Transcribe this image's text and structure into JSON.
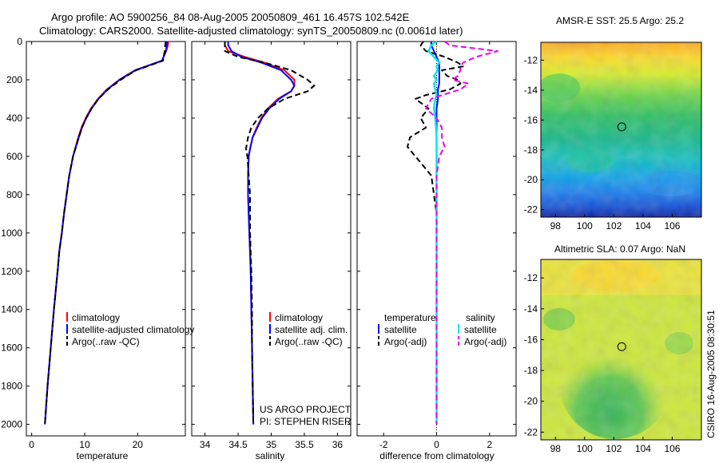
{
  "header": {
    "line1": "Argo profile: AO 5900256_84 08-Aug-2005 20050809_461 16.457S 102.542E",
    "line2": "Climatology: CARS2000. Satellite-adjusted climatology: synTS_20050809.nc (0.0061d later)"
  },
  "side_label": "CSIRO 16-Aug-2005 08:30:51",
  "colors": {
    "climatology": "#ff0000",
    "satellite": "#0000ff",
    "argo": "#000000",
    "salinity_satellite": "#00e5ee",
    "salinity_argo": "#ee00ee"
  },
  "chart_data": [
    {
      "type": "line",
      "panel": "temperature",
      "xlabel": "temperature",
      "xlim": [
        -1,
        29
      ],
      "xticks": [
        0,
        10,
        20
      ],
      "ylim": [
        0,
        2060
      ],
      "yticks": [
        0,
        200,
        400,
        600,
        800,
        1000,
        1200,
        1400,
        1600,
        1800,
        2000
      ],
      "depth": [
        0,
        20,
        50,
        100,
        130,
        150,
        200,
        250,
        300,
        350,
        400,
        450,
        500,
        600,
        700,
        800,
        900,
        1000,
        1100,
        1200,
        1400,
        1600,
        1800,
        2000
      ],
      "series": [
        {
          "name": "climatology",
          "values": [
            25.8,
            25.7,
            25.4,
            24.6,
            21.5,
            19.5,
            16.5,
            14.2,
            12.5,
            11.2,
            10.2,
            9.4,
            8.8,
            7.8,
            7.1,
            6.6,
            6.1,
            5.7,
            5.2,
            4.9,
            4.2,
            3.6,
            3.0,
            2.5
          ]
        },
        {
          "name": "satellite-adjusted climatology",
          "values": [
            25.6,
            25.5,
            25.3,
            24.6,
            21.6,
            19.6,
            16.6,
            14.3,
            12.6,
            11.3,
            10.3,
            9.5,
            8.9,
            7.8,
            7.1,
            6.6,
            6.1,
            5.7,
            5.2,
            4.9,
            4.2,
            3.6,
            3.0,
            2.5
          ]
        },
        {
          "name": "Argo(..raw -QC)",
          "values": [
            25.3,
            25.2,
            25.1,
            24.8,
            21.8,
            19.7,
            16.8,
            14.4,
            12.6,
            11.3,
            10.3,
            9.5,
            8.9,
            7.8,
            7.1,
            6.6,
            6.1,
            5.7,
            5.2,
            4.9,
            4.2,
            3.6,
            3.0,
            2.5
          ]
        }
      ],
      "legend": [
        "climatology",
        "satellite-adjusted climatology",
        "Argo(..raw -QC)"
      ]
    },
    {
      "type": "line",
      "panel": "salinity",
      "xlabel": "salinity",
      "xlim": [
        33.8,
        36.2
      ],
      "xticks": [
        34,
        34.5,
        35,
        35.5,
        36
      ],
      "ylim": [
        0,
        2060
      ],
      "depth": [
        0,
        20,
        50,
        80,
        110,
        150,
        200,
        230,
        260,
        300,
        350,
        400,
        450,
        500,
        560,
        600,
        700,
        800,
        900,
        1000,
        1100,
        1200,
        1400,
        1600,
        1800,
        2000
      ],
      "series": [
        {
          "name": "climatology",
          "values": [
            34.3,
            34.3,
            34.35,
            34.6,
            34.9,
            35.2,
            35.35,
            35.35,
            35.3,
            35.1,
            34.95,
            34.85,
            34.78,
            34.72,
            34.68,
            34.66,
            34.65,
            34.65,
            34.66,
            34.67,
            34.68,
            34.69,
            34.7,
            34.71,
            34.72,
            34.73
          ]
        },
        {
          "name": "satellite adj. clim.",
          "values": [
            34.35,
            34.35,
            34.4,
            34.55,
            34.85,
            35.15,
            35.3,
            35.35,
            35.3,
            35.12,
            34.97,
            34.86,
            34.79,
            34.72,
            34.68,
            34.66,
            34.65,
            34.65,
            34.66,
            34.67,
            34.68,
            34.69,
            34.7,
            34.71,
            34.72,
            34.73
          ]
        },
        {
          "name": "Argo(..raw -QC)",
          "values": [
            34.3,
            34.3,
            34.3,
            34.5,
            34.9,
            35.3,
            35.55,
            35.65,
            35.55,
            35.2,
            34.95,
            34.8,
            34.7,
            34.65,
            34.62,
            34.64,
            34.66,
            34.68,
            34.68,
            34.68,
            34.69,
            34.7,
            34.71,
            34.71,
            34.72,
            34.73
          ]
        }
      ],
      "legend": [
        "climatology",
        "satellite adj. clim.",
        "Argo(..raw -QC)"
      ],
      "annotation": [
        "US ARGO PROJECT",
        "PI: STEPHEN RISER"
      ]
    },
    {
      "type": "line",
      "panel": "difference",
      "xlabel": "difference from climatology",
      "xlim": [
        -3,
        3
      ],
      "xticks": [
        -2,
        0,
        2
      ],
      "ylim": [
        0,
        2060
      ],
      "depth": [
        0,
        20,
        50,
        80,
        110,
        130,
        150,
        180,
        200,
        220,
        250,
        280,
        300,
        350,
        400,
        450,
        500,
        550,
        600,
        700,
        800,
        900,
        1000,
        1200,
        1400,
        1600,
        1800,
        2000
      ],
      "series": [
        {
          "name": "temperature satellite",
          "values": [
            -0.2,
            -0.2,
            -0.1,
            0.0,
            0.1,
            0.1,
            0.1,
            0.1,
            0.1,
            0.1,
            0.05,
            0.05,
            0.05,
            0.0,
            0.0,
            0.0,
            0.0,
            0.0,
            0.0,
            0.0,
            0.0,
            0.0,
            0.0,
            0.0,
            0.0,
            0.0,
            0.0,
            0.0
          ]
        },
        {
          "name": "temperature Argo(-adj)",
          "values": [
            -0.5,
            -0.6,
            -0.4,
            0.3,
            0.8,
            1.0,
            0.2,
            0.4,
            0.8,
            0.9,
            0.5,
            -0.4,
            -0.8,
            -0.3,
            -0.6,
            -0.4,
            -1.0,
            -1.1,
            -0.8,
            -0.2,
            -0.1,
            0.0,
            0.0,
            0.0,
            0.0,
            0.0,
            0.0,
            0.0
          ]
        },
        {
          "name": "salinity satellite",
          "values": [
            0.0,
            -0.2,
            -0.3,
            -0.1,
            0.1,
            0.0,
            0.05,
            -0.1,
            0.0,
            -0.1,
            -0.05,
            0.0,
            -0.05,
            -0.1,
            -0.05,
            -0.02,
            0.0,
            0.0,
            0.0,
            0.0,
            0.0,
            0.0,
            0.0,
            0.0,
            0.0,
            0.0,
            0.0,
            0.0
          ]
        },
        {
          "name": "salinity Argo(-adj)",
          "values": [
            0.3,
            0.5,
            2.3,
            1.5,
            1.0,
            0.9,
            0.9,
            0.8,
            0.6,
            1.2,
            0.9,
            0.2,
            -0.2,
            -0.4,
            0.0,
            0.2,
            0.2,
            0.3,
            0.1,
            0.0,
            0.0,
            0.0,
            0.0,
            0.0,
            0.0,
            0.0,
            0.0,
            0.0
          ]
        }
      ],
      "legend_headers": [
        "temperature",
        "salinity"
      ],
      "legend": [
        "satellite",
        "Argo(-adj)",
        "satellite",
        "Argo(-adj)"
      ]
    },
    {
      "type": "heatmap",
      "panel": "sst-map",
      "title": "AMSR-E SST: 25.5 Argo: 25.2",
      "xlim": [
        97,
        108
      ],
      "xticks": [
        98,
        100,
        102,
        104,
        106
      ],
      "ylim": [
        -22.5,
        -10.8
      ],
      "yticks": [
        -12,
        -14,
        -16,
        -18,
        -20,
        -22
      ],
      "marker": {
        "lon": 102.542,
        "lat": -16.457
      }
    },
    {
      "type": "heatmap",
      "panel": "sla-map",
      "title": "Altimetric SLA: 0.07 Argo: NaN",
      "xlim": [
        97,
        108
      ],
      "xticks": [
        98,
        100,
        102,
        104,
        106
      ],
      "ylim": [
        -22.5,
        -10.8
      ],
      "yticks": [
        -12,
        -14,
        -16,
        -18,
        -20,
        -22
      ],
      "marker": {
        "lon": 102.542,
        "lat": -16.457
      }
    }
  ]
}
